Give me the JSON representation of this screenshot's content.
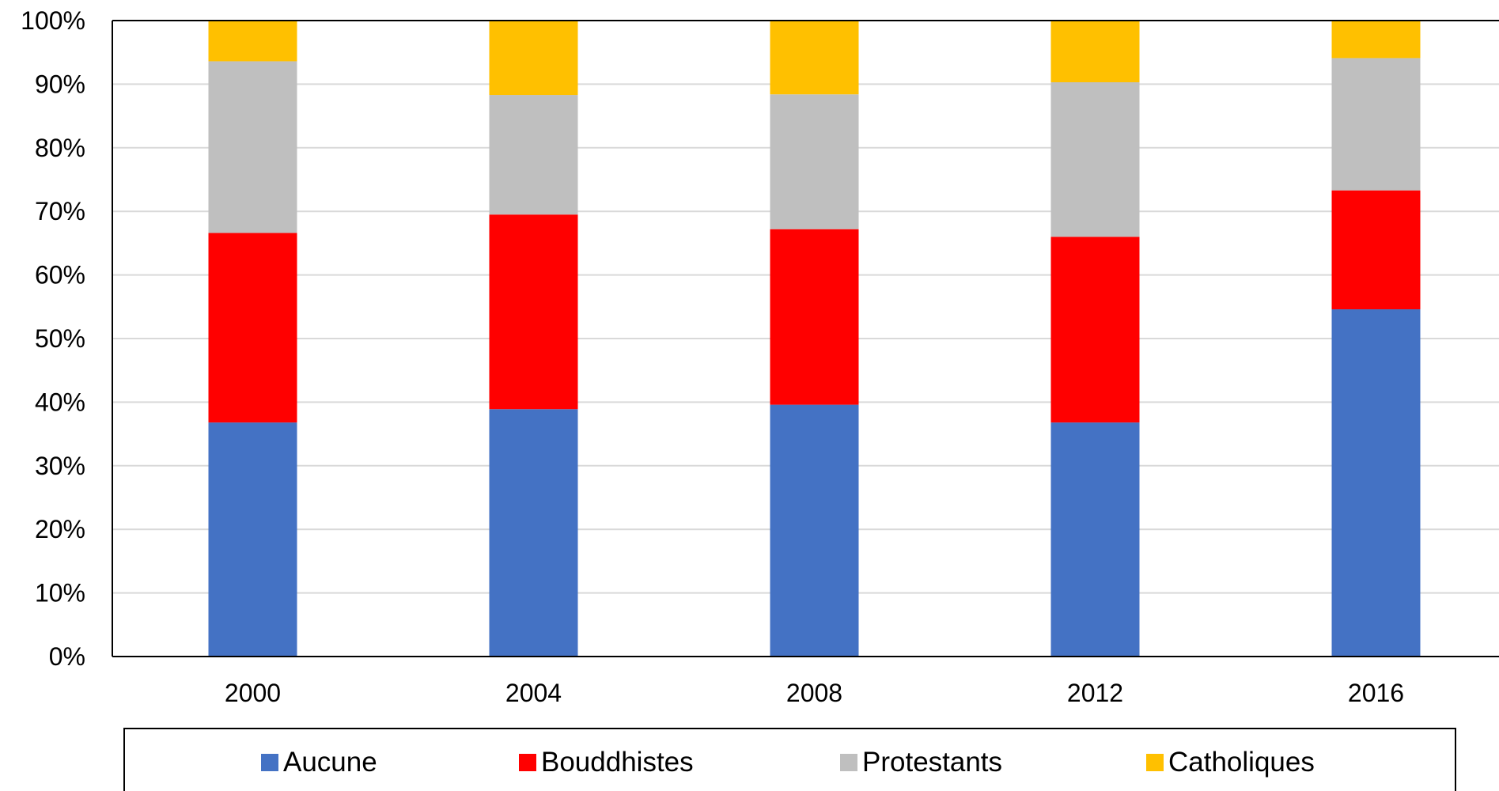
{
  "chart_data": {
    "type": "bar",
    "stacked": true,
    "categories": [
      "2000",
      "2004",
      "2008",
      "2012",
      "2016"
    ],
    "series": [
      {
        "name": "Aucune",
        "color": "#4472C4",
        "values": [
          36.8,
          38.9,
          39.6,
          36.8,
          54.6
        ]
      },
      {
        "name": "Bouddhistes",
        "color": "#FF0000",
        "values": [
          29.8,
          30.6,
          27.6,
          29.2,
          18.7
        ]
      },
      {
        "name": "Protestants",
        "color": "#BFBFBF",
        "values": [
          27.0,
          18.8,
          21.2,
          24.3,
          20.8
        ]
      },
      {
        "name": "Catholiques",
        "color": "#FFC000",
        "values": [
          6.4,
          11.7,
          11.6,
          9.7,
          5.9
        ]
      }
    ],
    "ylim": [
      0,
      100
    ],
    "yticks": [
      "0%",
      "10%",
      "20%",
      "30%",
      "40%",
      "50%",
      "60%",
      "70%",
      "80%",
      "90%",
      "100%"
    ],
    "grid": true,
    "legend_position": "bottom",
    "title": "",
    "xlabel": "",
    "ylabel": ""
  }
}
